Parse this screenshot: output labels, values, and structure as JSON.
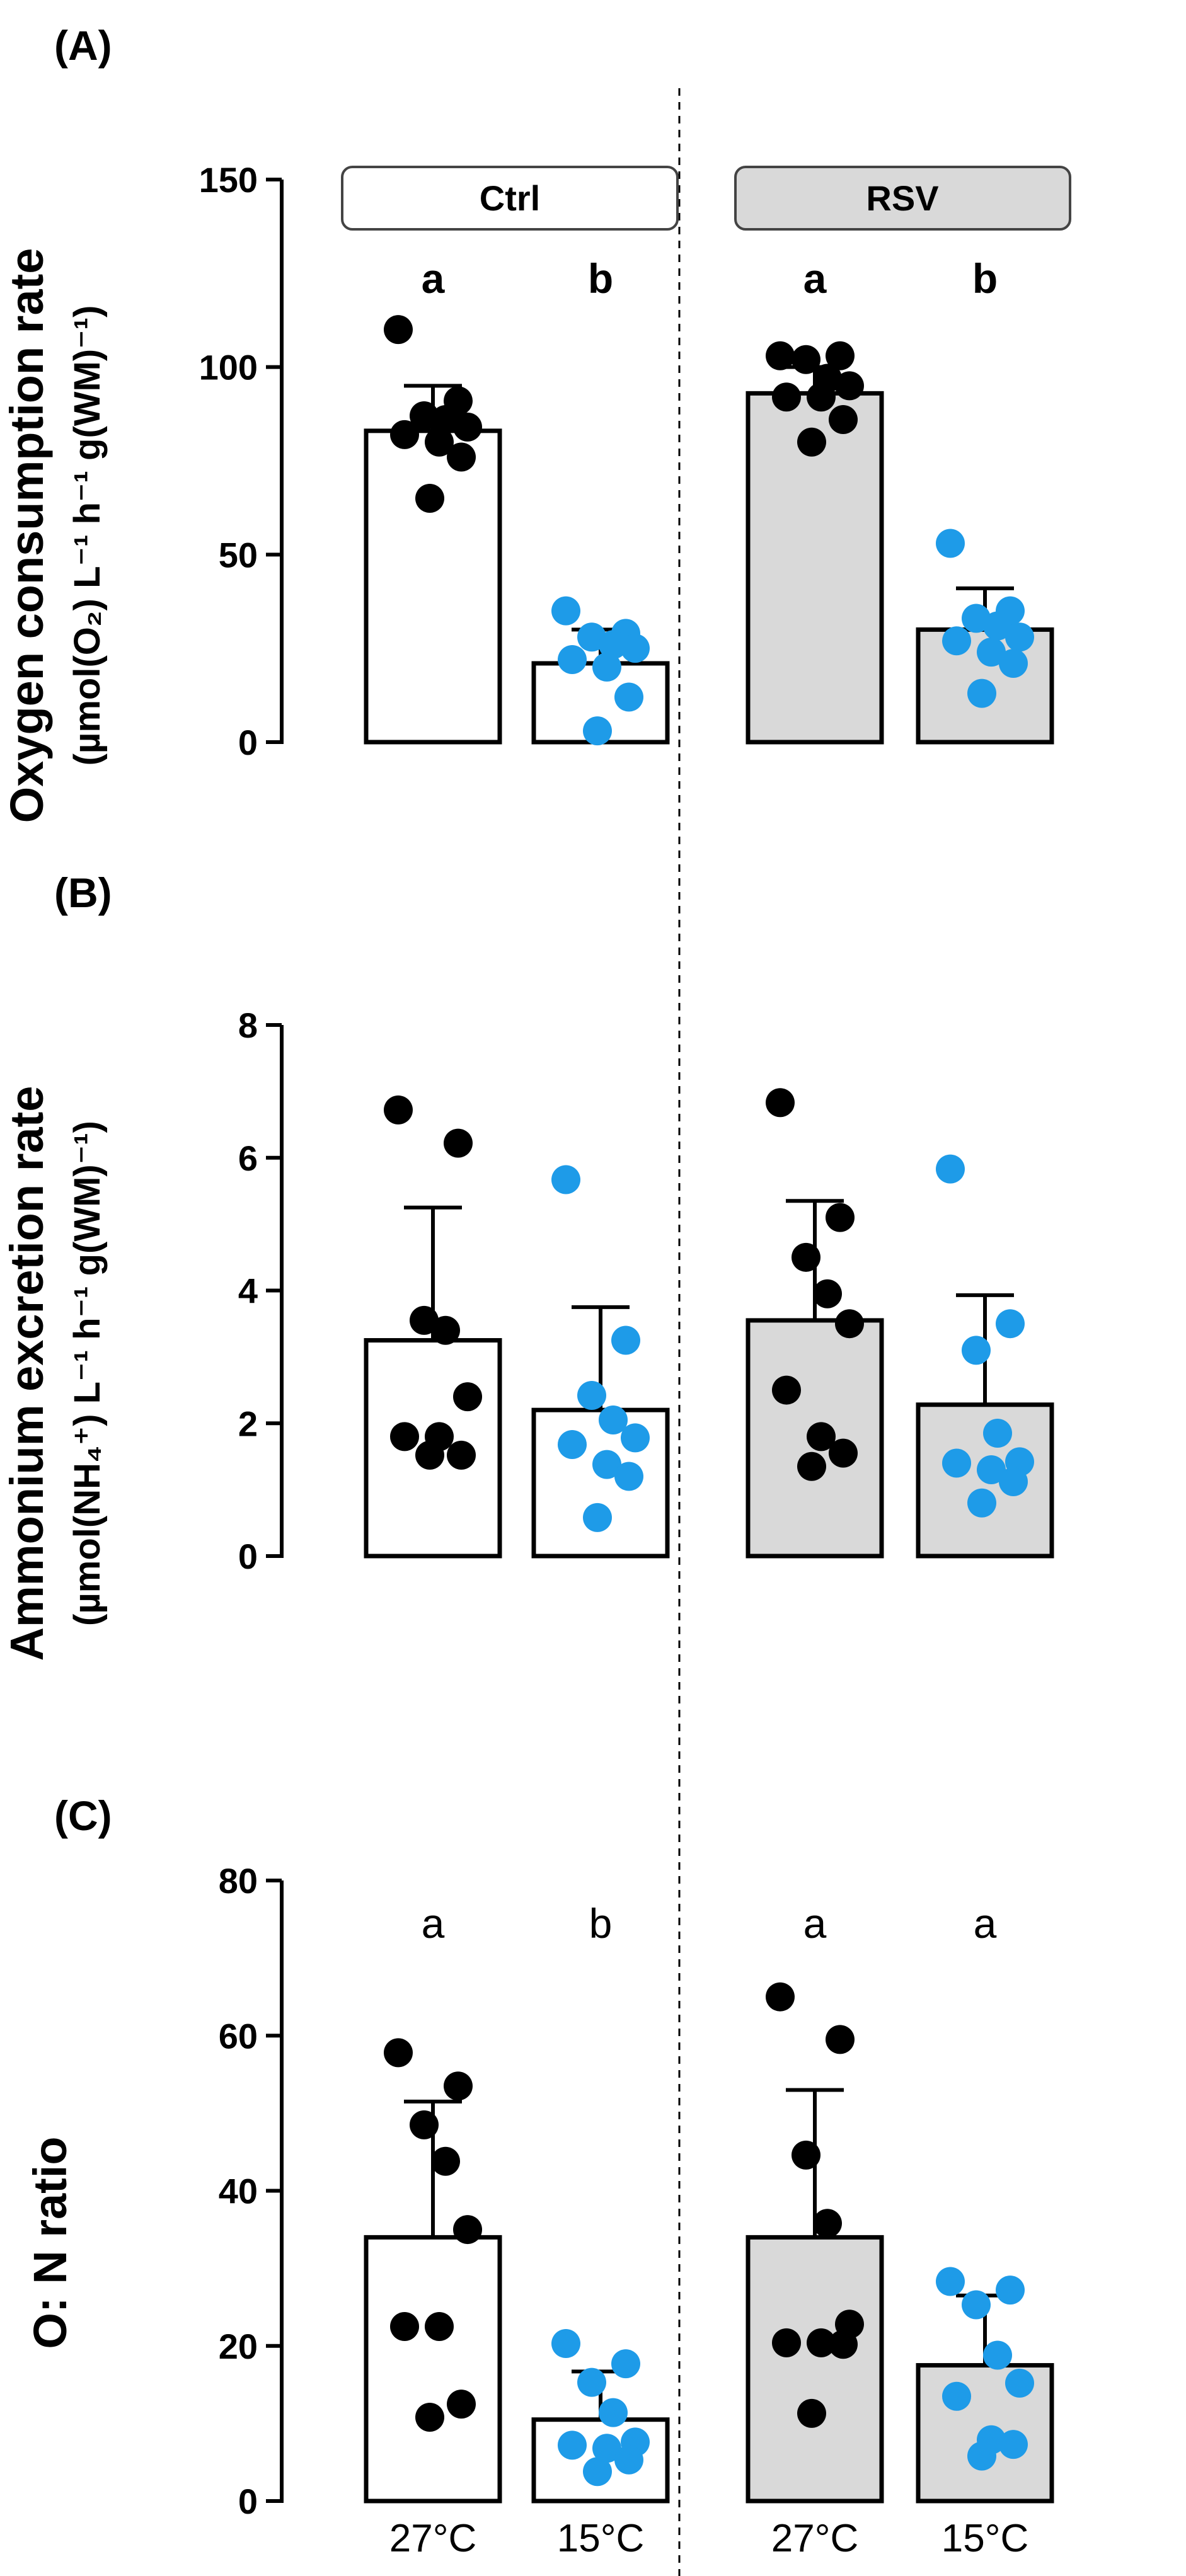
{
  "figure": {
    "group_boxes": [
      {
        "label": "Ctrl",
        "fill": "#ffffff"
      },
      {
        "label": "RSV",
        "fill": "#d9d9d9"
      }
    ],
    "x_tick_labels": [
      "27°C",
      "15°C",
      "27°C",
      "15°C"
    ],
    "colors": {
      "warm_dots": "#000000",
      "cold_dots": "#1e9be8",
      "ctrl_bar": "#ffffff",
      "rsv_bar": "#d9d9d9",
      "axis": "#000000"
    }
  },
  "chart_data": [
    {
      "type": "bar",
      "panel_label": "(A)",
      "ylabel_line1": "Oxygen consumption rate",
      "ylabel_line2": "(µmol(O₂) L⁻¹ h⁻¹ g(WM)⁻¹)",
      "ylim": [
        0,
        150
      ],
      "yticks": [
        0,
        50,
        100,
        150
      ],
      "categories": [
        "Ctrl 27°C",
        "Ctrl 15°C",
        "RSV 27°C",
        "RSV 15°C"
      ],
      "values": [
        83,
        21,
        93,
        30
      ],
      "errors": [
        12,
        9,
        7,
        11
      ],
      "significance": [
        "a",
        "b",
        "a",
        "b"
      ],
      "significance_bold": true,
      "points": [
        [
          110,
          91,
          87,
          86,
          84,
          82,
          80,
          76,
          65
        ],
        [
          35,
          29,
          28,
          26,
          25,
          22,
          20,
          12,
          3
        ],
        [
          103,
          103,
          102,
          97,
          95,
          92,
          92,
          86,
          80
        ],
        [
          53,
          35,
          33,
          31,
          28,
          27,
          24,
          21,
          13
        ]
      ]
    },
    {
      "type": "bar",
      "panel_label": "(B)",
      "ylabel_line1": "Ammonium excretion rate",
      "ylabel_line2": "(µmol(NH₄⁺) L⁻¹ h⁻¹ g(WM)⁻¹)",
      "ylim": [
        0,
        8
      ],
      "yticks": [
        0,
        2,
        4,
        6,
        8
      ],
      "categories": [
        "Ctrl 27°C",
        "Ctrl 15°C",
        "RSV 27°C",
        "RSV 15°C"
      ],
      "values": [
        3.25,
        2.2,
        3.55,
        2.28
      ],
      "errors": [
        2.0,
        1.55,
        1.8,
        1.65
      ],
      "significance": [],
      "points": [
        [
          6.72,
          6.22,
          3.55,
          3.4,
          2.4,
          1.8,
          1.8,
          1.52,
          1.52
        ],
        [
          5.67,
          3.25,
          2.42,
          2.05,
          1.78,
          1.68,
          1.38,
          1.2,
          0.58
        ],
        [
          6.83,
          5.1,
          4.5,
          3.95,
          3.5,
          2.5,
          1.8,
          1.55,
          1.35
        ],
        [
          5.83,
          3.5,
          3.1,
          1.85,
          1.42,
          1.4,
          1.3,
          1.12,
          0.8
        ]
      ]
    },
    {
      "type": "bar",
      "panel_label": "(C)",
      "ylabel_line1": "O: N ratio",
      "ylabel_line2": "",
      "ylim": [
        0,
        80
      ],
      "yticks": [
        0,
        20,
        40,
        60,
        80
      ],
      "categories": [
        "Ctrl 27°C",
        "Ctrl 15°C",
        "RSV 27°C",
        "RSV 15°C"
      ],
      "values": [
        34,
        10.5,
        34,
        17.5
      ],
      "errors": [
        17.5,
        6.2,
        19,
        9
      ],
      "significance": [
        "a",
        "b",
        "a",
        "a"
      ],
      "significance_bold": false,
      "points": [
        [
          57.8,
          53.5,
          48.5,
          43.8,
          35,
          22.5,
          22.5,
          12.5,
          10.8
        ],
        [
          20.3,
          17.7,
          15.3,
          11.4,
          7.6,
          7.2,
          6.8,
          5.3,
          3.8
        ],
        [
          65,
          59.5,
          44.6,
          35.8,
          22.8,
          20.4,
          20.4,
          20.2,
          11.3
        ],
        [
          28.3,
          27.2,
          25.3,
          18.8,
          15.2,
          13.5,
          7.9,
          7.3,
          5.8
        ]
      ]
    }
  ]
}
